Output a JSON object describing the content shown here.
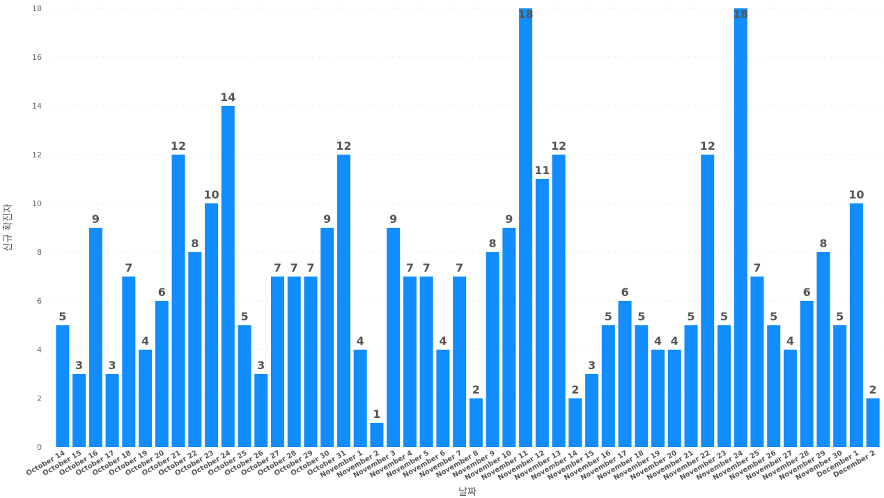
{
  "chart_data": {
    "type": "bar",
    "xlabel": "날짜",
    "ylabel": "신규 확진자",
    "ylim": [
      0,
      18
    ],
    "yticks": [
      0,
      2,
      4,
      6,
      8,
      10,
      12,
      14,
      16,
      18
    ],
    "grid": "horizontal-dotted",
    "bar_color": "#118dff",
    "categories": [
      "October 14",
      "October 15",
      "October 16",
      "October 17",
      "October 18",
      "October 19",
      "October 20",
      "October 21",
      "October 22",
      "October 23",
      "October 24",
      "October 25",
      "October 26",
      "October 27",
      "October 28",
      "October 29",
      "October 30",
      "October 31",
      "November 1",
      "November 2",
      "November 3",
      "November 4",
      "November 5",
      "November 6",
      "November 7",
      "November 8",
      "November 9",
      "November 10",
      "November 11",
      "November 12",
      "November 13",
      "November 14",
      "November 15",
      "November 16",
      "November 17",
      "November 18",
      "November 19",
      "November 20",
      "November 21",
      "November 22",
      "November 23",
      "November 24",
      "November 25",
      "November 26",
      "November 27",
      "November 28",
      "November 29",
      "November 30",
      "December 1",
      "December 2"
    ],
    "values": [
      5,
      3,
      9,
      3,
      7,
      4,
      6,
      12,
      8,
      10,
      14,
      5,
      3,
      7,
      7,
      7,
      9,
      12,
      4,
      1,
      9,
      7,
      7,
      4,
      7,
      2,
      8,
      9,
      18,
      11,
      12,
      2,
      3,
      5,
      6,
      5,
      4,
      4,
      5,
      12,
      5,
      18,
      7,
      5,
      4,
      6,
      8,
      5,
      10,
      2
    ]
  }
}
